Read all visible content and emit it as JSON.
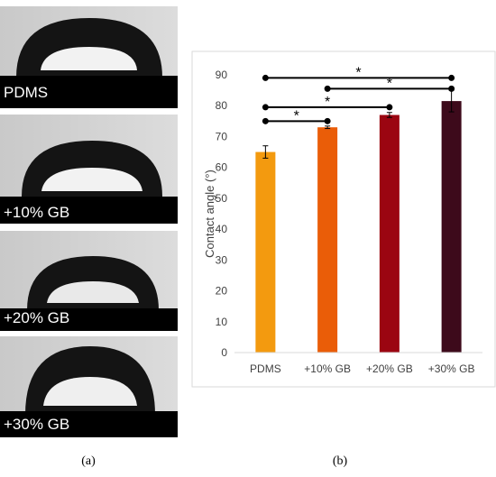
{
  "panel_a": {
    "samples": [
      "PDMS",
      "+10% GB",
      "+20% GB",
      "+30% GB"
    ],
    "caption": "(a)"
  },
  "panel_b": {
    "caption": "(b)"
  },
  "chart_data": {
    "type": "bar",
    "title": "",
    "xlabel": "",
    "ylabel": "Contact angle (°)",
    "ylim": [
      0,
      90
    ],
    "yticks": [
      0,
      10,
      20,
      30,
      40,
      50,
      60,
      70,
      80,
      90
    ],
    "categories": [
      "PDMS",
      "+10% GB",
      "+20% GB",
      "+30% GB"
    ],
    "values": [
      65,
      73,
      77,
      81.5
    ],
    "errors": [
      2,
      0.4,
      0.8,
      3.5
    ],
    "colors": [
      "#f39a0f",
      "#ea5d08",
      "#9b0511",
      "#3d0a1b"
    ],
    "significance": [
      {
        "from": 0,
        "to": 1,
        "label": "*",
        "y": 75
      },
      {
        "from": 0,
        "to": 2,
        "label": "*",
        "y": 79.5
      },
      {
        "from": 1,
        "to": 3,
        "label": "*",
        "y": 85.5
      },
      {
        "from": 0,
        "to": 3,
        "label": "*",
        "y": 89
      }
    ]
  }
}
